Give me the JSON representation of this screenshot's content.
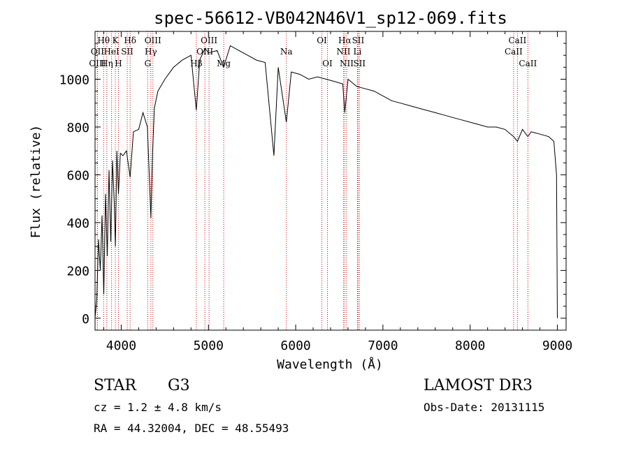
{
  "chart_data": {
    "type": "line",
    "title": "spec-56612-VB042N46V1_sp12-069.fits",
    "xlabel": "Wavelength (Å)",
    "ylabel": "Flux (relative)",
    "xlim": [
      3700,
      9100
    ],
    "ylim": [
      -50,
      1200
    ],
    "xticks": [
      4000,
      5000,
      6000,
      7000,
      8000,
      9000
    ],
    "yticks": [
      0,
      200,
      400,
      600,
      800,
      1000
    ],
    "spectrum": {
      "x": [
        3700,
        3720,
        3740,
        3760,
        3780,
        3800,
        3820,
        3840,
        3860,
        3880,
        3900,
        3920,
        3933,
        3950,
        3968,
        3990,
        4020,
        4060,
        4102,
        4140,
        4200,
        4250,
        4300,
        4340,
        4360,
        4380,
        4420,
        4500,
        4600,
        4700,
        4800,
        4861,
        4900,
        4960,
        5000,
        5100,
        5173,
        5250,
        5350,
        5450,
        5550,
        5650,
        5750,
        5800,
        5893,
        5950,
        6050,
        6150,
        6250,
        6350,
        6450,
        6540,
        6563,
        6600,
        6700,
        6800,
        6900,
        7000,
        7100,
        7200,
        7300,
        7400,
        7500,
        7600,
        7700,
        7800,
        7900,
        8000,
        8100,
        8200,
        8300,
        8400,
        8498,
        8542,
        8600,
        8662,
        8700,
        8800,
        8900,
        8960,
        8990,
        9000
      ],
      "y": [
        0,
        80,
        330,
        200,
        430,
        100,
        520,
        260,
        620,
        320,
        660,
        480,
        300,
        700,
        520,
        690,
        680,
        700,
        590,
        780,
        790,
        860,
        800,
        420,
        700,
        880,
        950,
        1000,
        1050,
        1080,
        1100,
        870,
        1080,
        1130,
        1110,
        1120,
        1050,
        1140,
        1120,
        1100,
        1080,
        1070,
        680,
        1050,
        820,
        1030,
        1020,
        1000,
        1010,
        1000,
        990,
        980,
        860,
        1000,
        970,
        960,
        950,
        930,
        910,
        900,
        890,
        880,
        870,
        860,
        850,
        840,
        830,
        820,
        810,
        800,
        800,
        790,
        760,
        740,
        790,
        760,
        780,
        770,
        760,
        740,
        600,
        0
      ]
    },
    "line_markers": [
      {
        "label": "Hθ",
        "x": 3798,
        "row": 0
      },
      {
        "label": "OII",
        "x": 3727,
        "row": 1
      },
      {
        "label": "OIII",
        "x": 3727,
        "row": 2
      },
      {
        "label": "K",
        "x": 3933,
        "row": 0
      },
      {
        "label": "HeI",
        "x": 3889,
        "row": 1
      },
      {
        "label": "Hη",
        "x": 3835,
        "row": 2
      },
      {
        "label": "Hδ",
        "x": 4102,
        "row": 0
      },
      {
        "label": "SII",
        "x": 4069,
        "row": 1
      },
      {
        "label": "H",
        "x": 3968,
        "row": 2
      },
      {
        "label": "OIII",
        "x": 4363,
        "row": 0
      },
      {
        "label": "Hγ",
        "x": 4340,
        "row": 1
      },
      {
        "label": "G",
        "x": 4304,
        "row": 2
      },
      {
        "label": "OIII",
        "x": 5007,
        "row": 0
      },
      {
        "label": "OIII",
        "x": 4959,
        "row": 1
      },
      {
        "label": "Hβ",
        "x": 4861,
        "row": 2
      },
      {
        "label": "Mg",
        "x": 5175,
        "row": 2
      },
      {
        "label": "Na",
        "x": 5893,
        "row": 1
      },
      {
        "label": "OI",
        "x": 6300,
        "row": 0
      },
      {
        "label": "OI",
        "x": 6364,
        "row": 2
      },
      {
        "label": "Hα",
        "x": 6563,
        "row": 0
      },
      {
        "label": "NII",
        "x": 6548,
        "row": 1
      },
      {
        "label": "NII",
        "x": 6584,
        "row": 2
      },
      {
        "label": "SII",
        "x": 6716,
        "row": 0
      },
      {
        "label": "Li",
        "x": 6708,
        "row": 1
      },
      {
        "label": "SII",
        "x": 6731,
        "row": 2
      },
      {
        "label": "CaII",
        "x": 8542,
        "row": 0
      },
      {
        "label": "CaII",
        "x": 8498,
        "row": 1
      },
      {
        "label": "CaII",
        "x": 8662,
        "row": 2
      }
    ]
  },
  "info": {
    "object_class": "STAR",
    "subclass": "G3",
    "survey": "LAMOST DR3",
    "cz": "cz = 1.2 ± 4.8 km/s",
    "obs_date": "Obs-Date: 20131115",
    "coords": "RA =  44.32004, DEC =  48.55493"
  },
  "colors": {
    "spectrum": "#000000",
    "marker_line": "#cc0000",
    "axis": "#000000"
  }
}
